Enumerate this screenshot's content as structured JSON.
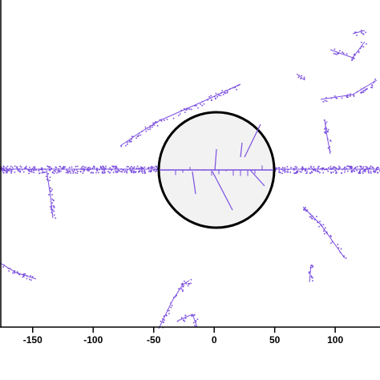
{
  "chart_data": {
    "type": "scatter",
    "xlim": [
      -177,
      137
    ],
    "xticks": [
      -150,
      -100,
      -50,
      0,
      50,
      100
    ],
    "color": "#7b4fe0"
  }
}
